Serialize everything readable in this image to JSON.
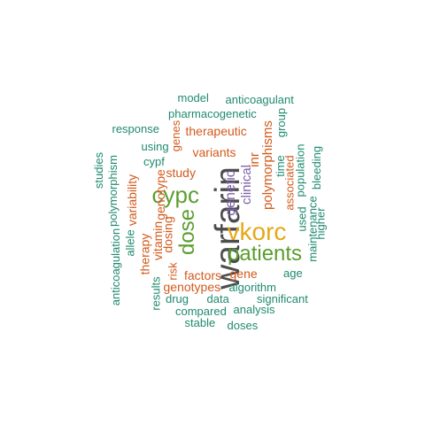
{
  "colors": {
    "largest": "#4d4d4d",
    "large": "#e6a817",
    "medium": "#5a9e2f",
    "medium_small": "#7a5fa8",
    "small": "#d35a1c",
    "smallest": "#1f8a6f"
  },
  "words": [
    {
      "text": "warfarin",
      "tier": "largest"
    },
    {
      "text": "vkorc",
      "tier": "large"
    },
    {
      "text": "patients",
      "tier": "medium"
    },
    {
      "text": "cypc",
      "tier": "medium"
    },
    {
      "text": "dose",
      "tier": "medium"
    },
    {
      "text": "genetic",
      "tier": "medium_small"
    },
    {
      "text": "clinical",
      "tier": "medium_small"
    },
    {
      "text": "polymorphisms",
      "tier": "small"
    },
    {
      "text": "inr",
      "tier": "small"
    },
    {
      "text": "associated",
      "tier": "small"
    },
    {
      "text": "variants",
      "tier": "small"
    },
    {
      "text": "study",
      "tier": "small"
    },
    {
      "text": "therapeutic",
      "tier": "small"
    },
    {
      "text": "genotype",
      "tier": "small"
    },
    {
      "text": "variability",
      "tier": "small"
    },
    {
      "text": "therapy",
      "tier": "small"
    },
    {
      "text": "vitamin",
      "tier": "small"
    },
    {
      "text": "dosing",
      "tier": "small"
    },
    {
      "text": "genes",
      "tier": "small"
    },
    {
      "text": "gene",
      "tier": "small"
    },
    {
      "text": "factors",
      "tier": "small"
    },
    {
      "text": "genotypes",
      "tier": "small"
    },
    {
      "text": "risk",
      "tier": "small"
    },
    {
      "text": "model",
      "tier": "smallest"
    },
    {
      "text": "anticoagulant",
      "tier": "smallest"
    },
    {
      "text": "pharmacogenetic",
      "tier": "smallest"
    },
    {
      "text": "response",
      "tier": "smallest"
    },
    {
      "text": "using",
      "tier": "smallest"
    },
    {
      "text": "cypf",
      "tier": "smallest"
    },
    {
      "text": "studies",
      "tier": "smallest"
    },
    {
      "text": "polymorphism",
      "tier": "smallest"
    },
    {
      "text": "group",
      "tier": "smallest"
    },
    {
      "text": "time",
      "tier": "smallest"
    },
    {
      "text": "population",
      "tier": "smallest"
    },
    {
      "text": "bleeding",
      "tier": "smallest"
    },
    {
      "text": "used",
      "tier": "smallest"
    },
    {
      "text": "maintenance",
      "tier": "smallest"
    },
    {
      "text": "higher",
      "tier": "smallest"
    },
    {
      "text": "allele",
      "tier": "smallest"
    },
    {
      "text": "anticoagulation",
      "tier": "smallest"
    },
    {
      "text": "age",
      "tier": "smallest"
    },
    {
      "text": "algorithm",
      "tier": "smallest"
    },
    {
      "text": "results",
      "tier": "smallest"
    },
    {
      "text": "drug",
      "tier": "smallest"
    },
    {
      "text": "data",
      "tier": "smallest"
    },
    {
      "text": "significant",
      "tier": "smallest"
    },
    {
      "text": "compared",
      "tier": "smallest"
    },
    {
      "text": "analysis",
      "tier": "smallest"
    },
    {
      "text": "stable",
      "tier": "smallest"
    },
    {
      "text": "doses",
      "tier": "smallest"
    }
  ]
}
